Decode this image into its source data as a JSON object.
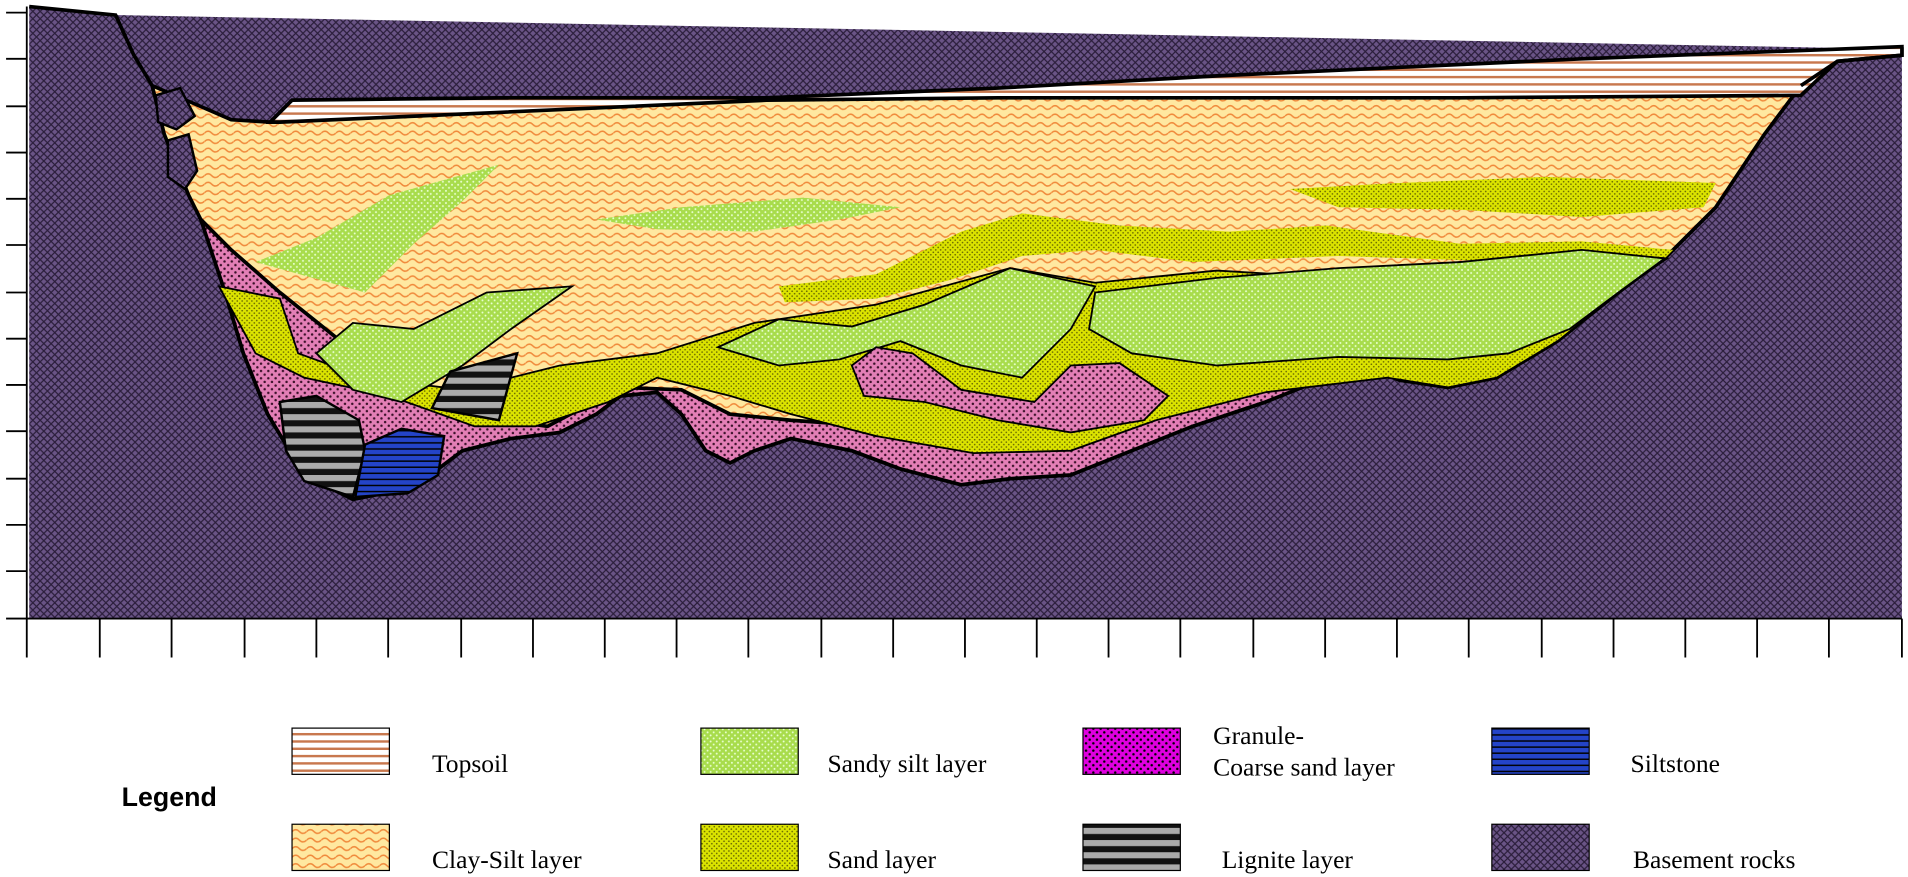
{
  "legend": {
    "title": "Legend",
    "items": [
      {
        "label": "Topsoil"
      },
      {
        "label": "Sandy silt layer"
      },
      {
        "label": [
          "Granule-",
          "Coarse sand layer"
        ]
      },
      {
        "label": "Siltstone"
      },
      {
        "label": "Clay-Silt layer"
      },
      {
        "label": "Sand layer"
      },
      {
        "label": "Lignite layer"
      },
      {
        "label": "Basement rocks"
      }
    ]
  }
}
